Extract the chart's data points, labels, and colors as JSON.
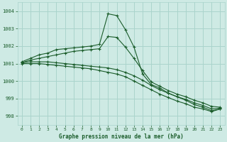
{
  "title": "Graphe pression niveau de la mer (hPa)",
  "bg_color": "#ceeae4",
  "grid_color": "#aad4cc",
  "line_color": "#1a5c2a",
  "xlim": [
    -0.5,
    23.5
  ],
  "ylim": [
    997.5,
    1004.5
  ],
  "yticks": [
    998,
    999,
    1000,
    1001,
    1002,
    1003,
    1004
  ],
  "xticks": [
    0,
    1,
    2,
    3,
    4,
    5,
    6,
    7,
    8,
    9,
    10,
    11,
    12,
    13,
    14,
    15,
    16,
    17,
    18,
    19,
    20,
    21,
    22,
    23
  ],
  "series": [
    {
      "x": [
        0,
        1,
        2,
        3,
        4,
        5,
        6,
        7,
        8,
        9,
        10,
        11,
        12,
        13,
        14,
        15,
        16,
        17,
        18,
        19,
        20,
        21,
        22,
        23
      ],
      "y": [
        1001.1,
        1001.3,
        1001.5,
        1001.6,
        1001.8,
        1001.85,
        1001.9,
        1001.95,
        1002.0,
        1002.1,
        1003.85,
        1003.75,
        1002.95,
        1001.95,
        1000.4,
        999.8,
        999.6,
        999.3,
        999.1,
        998.9,
        998.65,
        998.5,
        998.3,
        998.4
      ]
    },
    {
      "x": [
        0,
        1,
        2,
        3,
        4,
        5,
        6,
        7,
        8,
        9,
        10,
        11,
        12,
        13,
        14,
        15,
        16,
        17,
        18,
        19,
        20,
        21,
        22,
        23
      ],
      "y": [
        1001.05,
        1001.2,
        1001.3,
        1001.4,
        1001.5,
        1001.6,
        1001.7,
        1001.75,
        1001.8,
        1001.85,
        1002.55,
        1002.5,
        1001.95,
        1001.3,
        1000.6,
        999.95,
        999.7,
        999.45,
        999.25,
        999.1,
        998.9,
        998.75,
        998.55,
        998.5
      ]
    },
    {
      "x": [
        0,
        1,
        2,
        3,
        4,
        5,
        6,
        7,
        8,
        9,
        10,
        11,
        12,
        13,
        14,
        15,
        16,
        17,
        18,
        19,
        20,
        21,
        22,
        23
      ],
      "y": [
        1001.05,
        1001.1,
        1001.1,
        1001.1,
        1001.05,
        1001.0,
        1000.95,
        1000.9,
        1000.85,
        1000.8,
        1000.75,
        1000.65,
        1000.5,
        1000.3,
        1000.05,
        999.75,
        999.5,
        999.3,
        999.1,
        998.95,
        998.75,
        998.6,
        998.4,
        998.45
      ]
    },
    {
      "x": [
        0,
        1,
        2,
        3,
        4,
        5,
        6,
        7,
        8,
        9,
        10,
        11,
        12,
        13,
        14,
        15,
        16,
        17,
        18,
        19,
        20,
        21,
        22,
        23
      ],
      "y": [
        1001.0,
        1001.0,
        1001.0,
        1000.95,
        1000.9,
        1000.85,
        1000.8,
        1000.75,
        1000.7,
        1000.6,
        1000.5,
        1000.4,
        1000.25,
        1000.0,
        999.75,
        999.5,
        999.25,
        999.05,
        998.85,
        998.7,
        998.5,
        998.4,
        998.25,
        998.4
      ]
    }
  ]
}
